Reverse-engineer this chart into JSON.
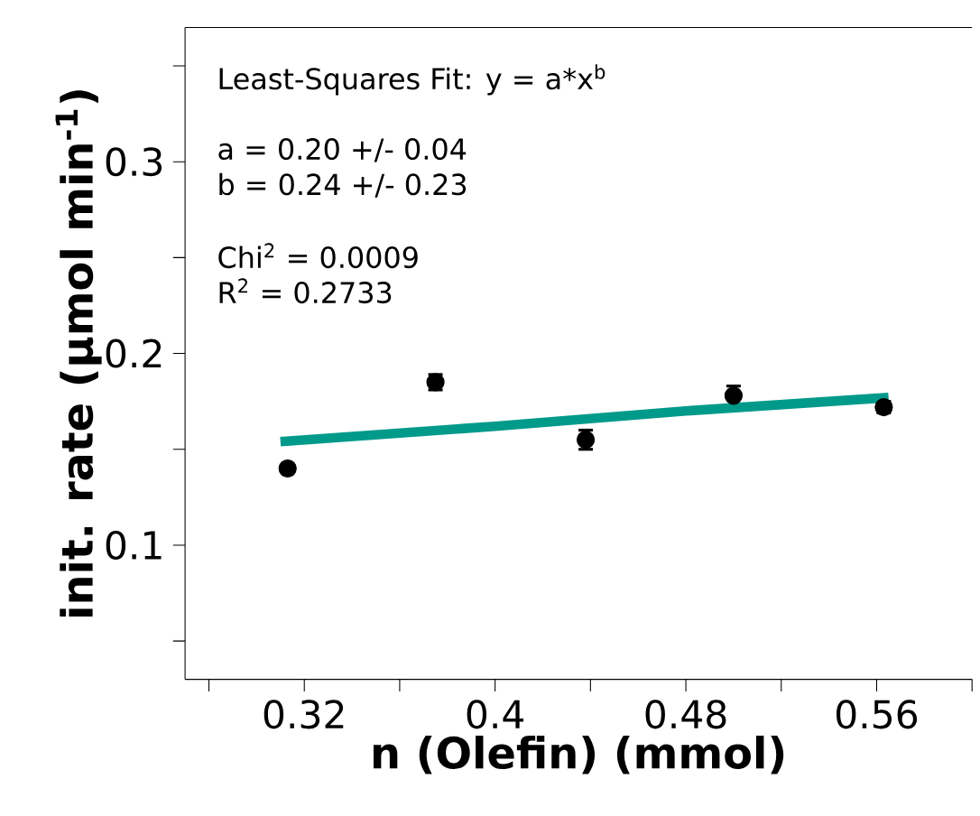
{
  "chart_data": {
    "type": "scatter",
    "xlabel": "n (Olefin) (mmol)",
    "ylabel": "init. rate (µmol min$^{-1}$)",
    "xlim": [
      0.27,
      0.6
    ],
    "ylim": [
      0.03,
      0.37
    ],
    "xticks": [
      {
        "value": 0.28,
        "label": null
      },
      0.32,
      {
        "value": 0.36,
        "label": null
      },
      0.4,
      {
        "value": 0.44,
        "label": null
      },
      0.48,
      {
        "value": 0.52,
        "label": null
      },
      0.56,
      {
        "value": 0.6,
        "label": null
      }
    ],
    "yticks": [
      {
        "value": 0.05,
        "label": null
      },
      0.1,
      {
        "value": 0.15,
        "label": null
      },
      0.2,
      {
        "value": 0.25,
        "label": null
      },
      0.3,
      {
        "value": 0.35,
        "label": null
      }
    ],
    "series": [
      {
        "type": "scatter",
        "color": "#000000",
        "marker": "circle",
        "x": [
          0.313,
          0.375,
          0.438,
          0.5,
          0.563
        ],
        "values": [
          0.14,
          0.185,
          0.155,
          0.178,
          0.172
        ],
        "errors": [
          null,
          0.004,
          0.005,
          0.005,
          0.003
        ]
      },
      {
        "type": "line",
        "color": "#009a8a",
        "line_style": "solid",
        "x": [
          0.31,
          0.4,
          0.48,
          0.565
        ],
        "values": [
          0.154,
          0.162,
          0.17,
          0.177
        ]
      }
    ],
    "annotations": [
      "Least-Squares Fit: y = a*x$^{b}$",
      "a  = 0.20 +/- 0.04",
      "b  = 0.24 +/- 0.23",
      "Chi$^{2}$ = 0.0009",
      "R$^{2}$ = 0.2733"
    ]
  }
}
